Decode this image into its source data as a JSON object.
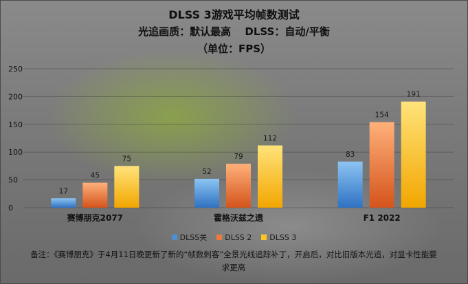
{
  "chart_data": {
    "type": "bar",
    "title": "DLSS 3游戏平均帧数测试",
    "subtitle": "光追画质：默认最高　 DLSS：自动/平衡",
    "unit": "（单位：FPS）",
    "categories": [
      "赛博朋克2077",
      "霍格沃兹之遗",
      "F1 2022"
    ],
    "series": [
      {
        "name": "DLSS关",
        "values": [
          17,
          52,
          83
        ],
        "color": "#4d8fd6"
      },
      {
        "name": "DLSS 2",
        "values": [
          45,
          79,
          154
        ],
        "color": "#ec7b3c"
      },
      {
        "name": "DLSS 3",
        "values": [
          75,
          112,
          191
        ],
        "color": "#ffc61f"
      }
    ],
    "ylim": [
      0,
      250
    ],
    "yticks": [
      0,
      50,
      100,
      150,
      200,
      250
    ],
    "grid": true,
    "legend_position": "bottom"
  },
  "note": "备注：《赛博朋克》于4月11日晚更新了新的“帧数刺客”全景光线追踪补丁，开启后，对比旧版本光追，对显卡性能要求更高"
}
